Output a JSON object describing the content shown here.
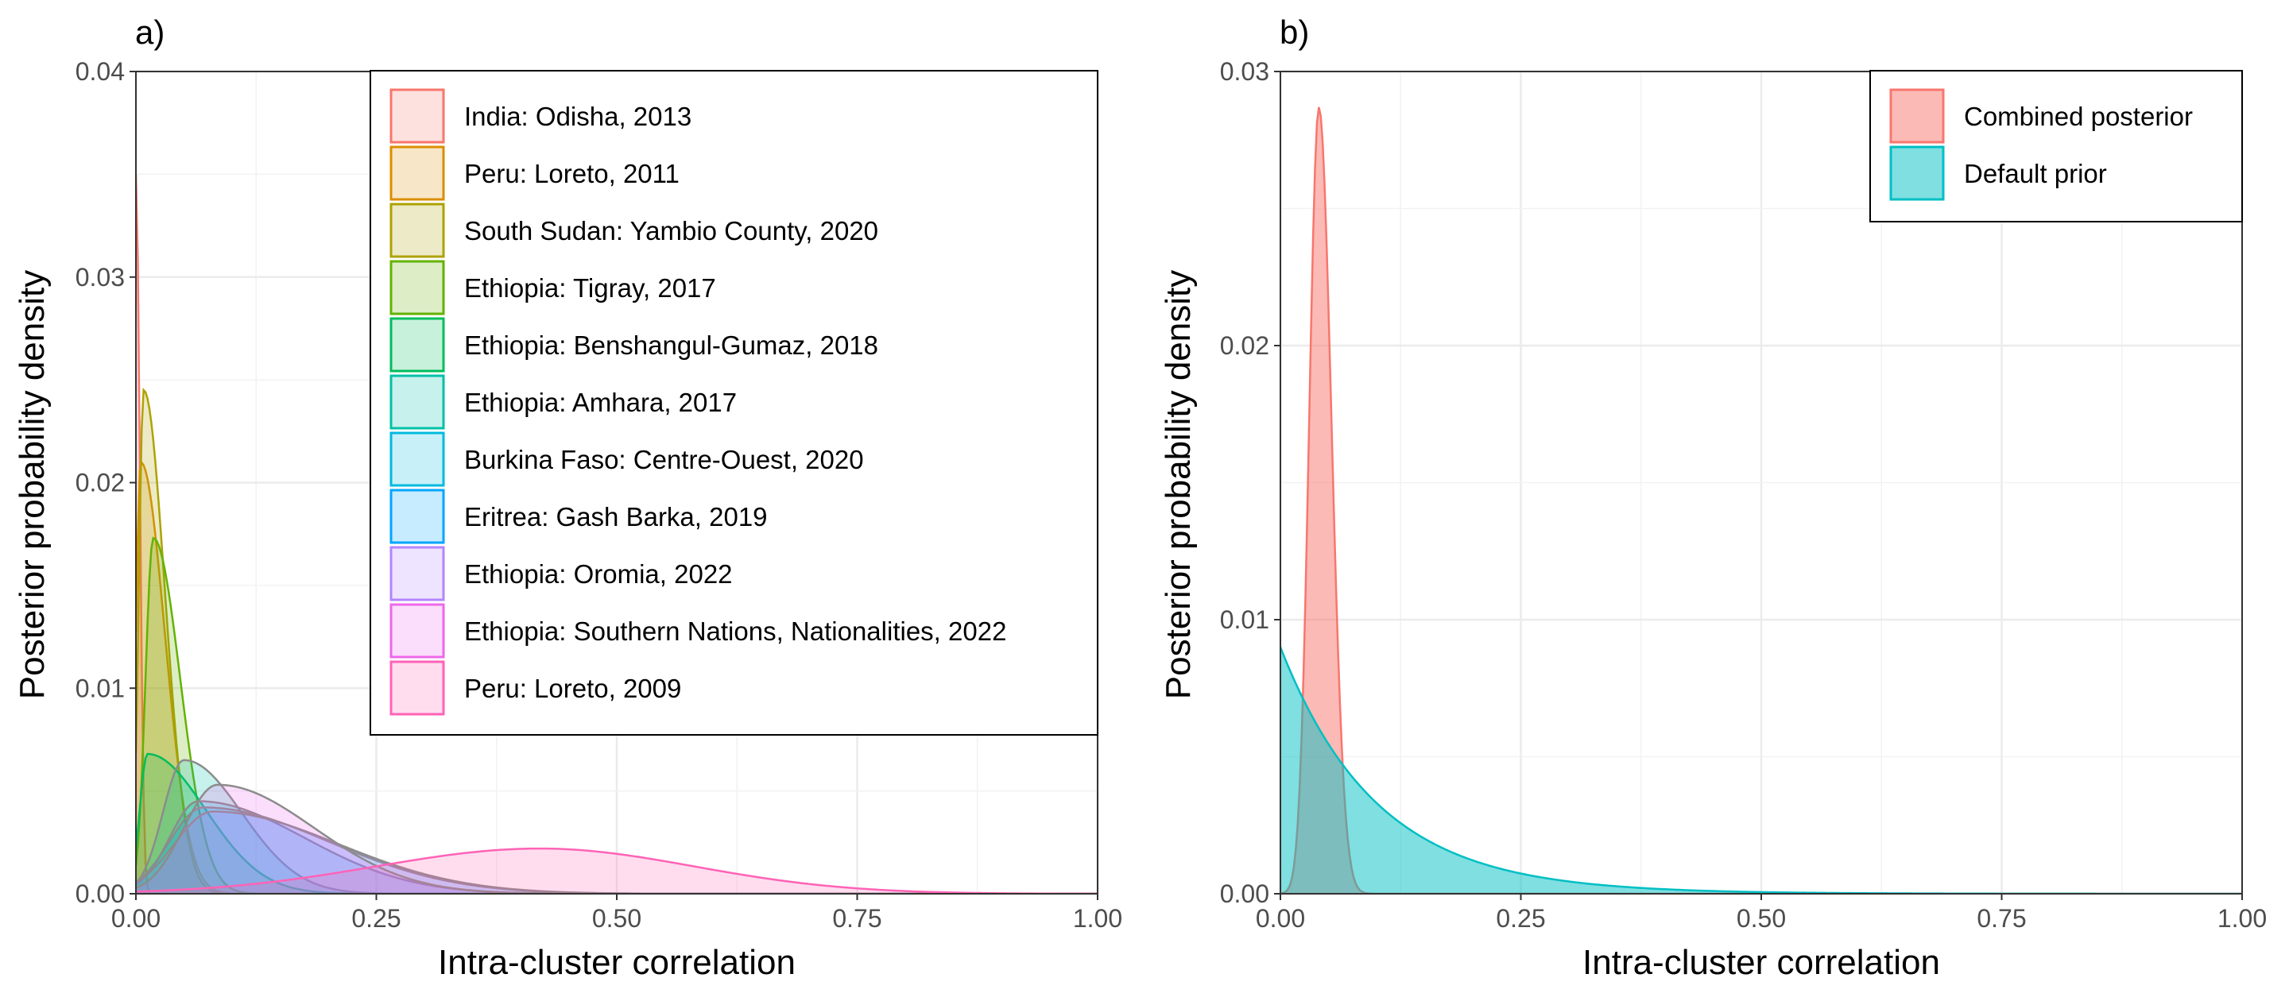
{
  "colors": {
    "panel_a": [
      "#F8766D",
      "#DB8E00",
      "#AEA200",
      "#64B200",
      "#00BD5C",
      "#00C1A7",
      "#00BADE",
      "#00A6FF",
      "#B385FF",
      "#EF67EB",
      "#FF63B6"
    ],
    "posterior": "#F8766D",
    "prior": "#00BFC4",
    "outline_a": "#8c8c8c"
  },
  "chart_data": [
    {
      "type": "area",
      "panel_label": "a)",
      "xlabel": "Intra-cluster correlation",
      "ylabel": "Posterior probability density",
      "xlim": [
        0,
        1
      ],
      "ylim": [
        0,
        0.04
      ],
      "x_ticks": [
        0,
        0.25,
        0.5,
        0.75,
        1
      ],
      "x_tick_labels": [
        "0.00",
        "0.25",
        "0.50",
        "0.75",
        "1.00"
      ],
      "y_ticks": [
        0,
        0.01,
        0.02,
        0.03,
        0.04
      ],
      "y_tick_labels": [
        "0.00",
        "0.01",
        "0.02",
        "0.03",
        "0.04"
      ],
      "grid": true,
      "legend_position": "top-right",
      "series": [
        {
          "name": "India: Odisha, 2013",
          "mode": 0.0,
          "peak": 0.035,
          "sd_left": 0.01,
          "sd_right": 0.004
        },
        {
          "name": "Peru: Loreto, 2011",
          "mode": 0.005,
          "peak": 0.021,
          "sd_left": 0.005,
          "sd_right": 0.025
        },
        {
          "name": "South Sudan: Yambio County, 2020",
          "mode": 0.008,
          "peak": 0.0245,
          "sd_left": 0.005,
          "sd_right": 0.022
        },
        {
          "name": "Ethiopia: Tigray, 2017",
          "mode": 0.018,
          "peak": 0.0173,
          "sd_left": 0.008,
          "sd_right": 0.028
        },
        {
          "name": "Ethiopia: Benshangul-Gumaz, 2018",
          "mode": 0.012,
          "peak": 0.0068,
          "sd_left": 0.008,
          "sd_right": 0.06
        },
        {
          "name": "Ethiopia: Amhara, 2017",
          "mode": 0.05,
          "peak": 0.0065,
          "sd_left": 0.022,
          "sd_right": 0.06
        },
        {
          "name": "Burkina Faso: Centre-Ouest, 2020",
          "mode": 0.065,
          "peak": 0.0045,
          "sd_left": 0.03,
          "sd_right": 0.11
        },
        {
          "name": "Eritrea: Gash Barka, 2019",
          "mode": 0.07,
          "peak": 0.0042,
          "sd_left": 0.035,
          "sd_right": 0.13
        },
        {
          "name": "Ethiopia: Oromia, 2022",
          "mode": 0.08,
          "peak": 0.004,
          "sd_left": 0.04,
          "sd_right": 0.13
        },
        {
          "name": "Ethiopia: Southern Nations, Nationalities, 2022",
          "mode": 0.085,
          "peak": 0.0053,
          "sd_left": 0.035,
          "sd_right": 0.1
        },
        {
          "name": "Peru: Loreto, 2009",
          "mode": 0.42,
          "peak": 0.0022,
          "sd_left": 0.17,
          "sd_right": 0.16
        }
      ]
    },
    {
      "type": "area",
      "panel_label": "b)",
      "xlabel": "Intra-cluster correlation",
      "ylabel": "Posterior probability density",
      "xlim": [
        0,
        1
      ],
      "ylim": [
        0,
        0.03
      ],
      "x_ticks": [
        0,
        0.25,
        0.5,
        0.75,
        1
      ],
      "x_tick_labels": [
        "0.00",
        "0.25",
        "0.50",
        "0.75",
        "1.00"
      ],
      "y_ticks": [
        0,
        0.01,
        0.02,
        0.03
      ],
      "y_tick_labels": [
        "0.00",
        "0.01",
        "0.02",
        "0.03"
      ],
      "grid": true,
      "legend_position": "top-right",
      "series": [
        {
          "name": "Combined posterior",
          "mode": 0.04,
          "peak": 0.0287,
          "sd_left": 0.01,
          "sd_right": 0.013
        },
        {
          "name": "Default prior",
          "value_at_0": 0.009,
          "decay_rate": 10
        }
      ]
    }
  ]
}
